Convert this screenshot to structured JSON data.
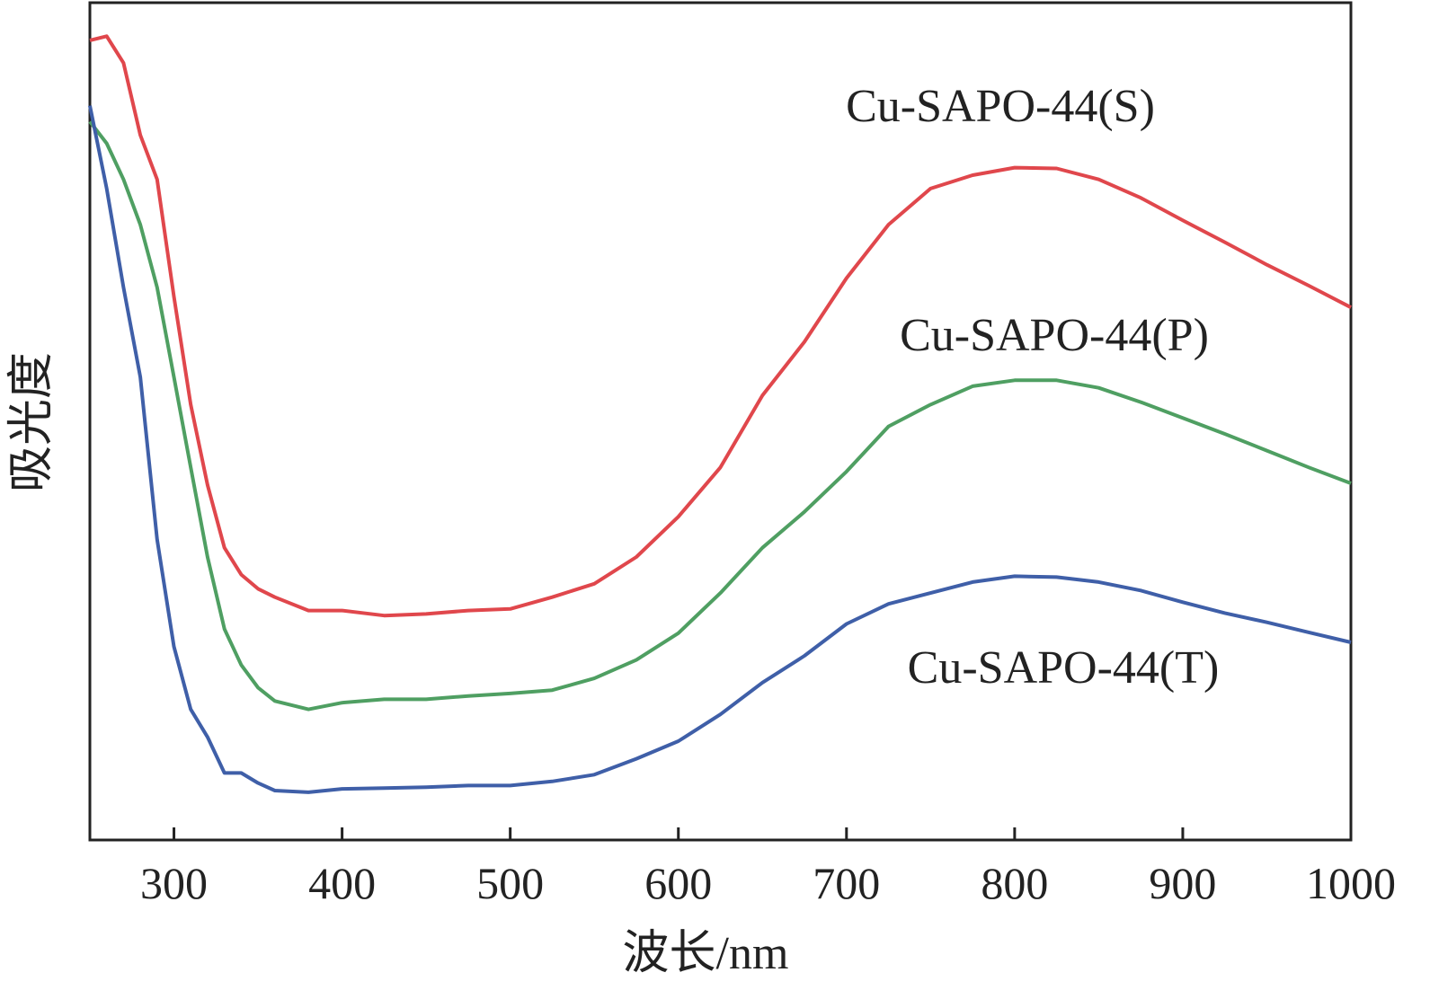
{
  "chart_data": {
    "type": "line",
    "x_label": "波长/nm",
    "y_label": "吸光度",
    "x": [
      250,
      260,
      270,
      280,
      290,
      300,
      310,
      320,
      330,
      340,
      350,
      360,
      380,
      400,
      425,
      450,
      475,
      500,
      525,
      550,
      575,
      600,
      625,
      650,
      675,
      700,
      725,
      750,
      775,
      800,
      825,
      850,
      875,
      900,
      925,
      950,
      975,
      1000
    ],
    "series": [
      {
        "name": "Cu-SAPO-44(S)",
        "color": "#e0474c",
        "values": [
          95.5,
          96.0,
          92.8,
          84.2,
          78.9,
          64.9,
          52.0,
          42.4,
          34.9,
          31.7,
          30.0,
          29.0,
          27.4,
          27.4,
          26.8,
          27.0,
          27.4,
          27.6,
          29.0,
          30.6,
          33.8,
          38.6,
          44.5,
          53.1,
          59.5,
          67.1,
          73.5,
          77.8,
          79.4,
          80.3,
          80.2,
          78.9,
          76.7,
          74.0,
          71.4,
          68.7,
          66.2,
          63.6
        ]
      },
      {
        "name": "Cu-SAPO-44(P)",
        "color": "#4f9f62",
        "values": [
          85.8,
          83.2,
          78.9,
          73.5,
          66.0,
          55.3,
          44.5,
          33.8,
          25.2,
          20.9,
          18.2,
          16.6,
          15.6,
          16.4,
          16.8,
          16.8,
          17.2,
          17.5,
          17.9,
          19.3,
          21.5,
          24.7,
          29.5,
          34.9,
          39.2,
          44.0,
          49.4,
          52.0,
          54.2,
          54.9,
          54.9,
          54.0,
          52.3,
          50.4,
          48.5,
          46.5,
          44.5,
          42.6
        ]
      },
      {
        "name": "Cu-SAPO-44(T)",
        "color": "#3f5fa8",
        "values": [
          87.7,
          77.8,
          66.0,
          55.3,
          35.9,
          23.1,
          15.6,
          12.3,
          8.0,
          8.0,
          6.8,
          5.9,
          5.7,
          6.1,
          6.2,
          6.3,
          6.5,
          6.5,
          7.0,
          7.8,
          9.7,
          11.8,
          15.0,
          18.8,
          22.0,
          25.8,
          28.2,
          29.5,
          30.8,
          31.5,
          31.4,
          30.8,
          29.8,
          28.4,
          27.1,
          26.0,
          24.8,
          23.6
        ]
      }
    ],
    "xlim": [
      250,
      1000
    ],
    "xticks": [
      300,
      400,
      500,
      600,
      700,
      800,
      900,
      1000
    ],
    "ylim": [
      0,
      100
    ]
  }
}
